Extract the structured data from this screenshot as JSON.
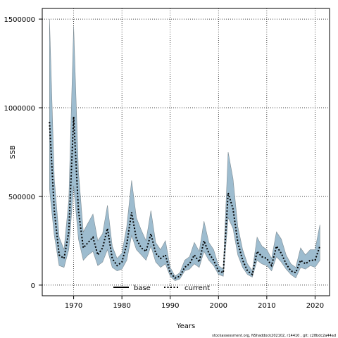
{
  "chart_data": {
    "type": "line",
    "xlabel": "Years",
    "ylabel": "SSB",
    "xlim": [
      1963.5,
      2023
    ],
    "ylim": [
      -60000,
      1560000
    ],
    "xticks": [
      1970,
      1980,
      1990,
      2000,
      2010,
      2020
    ],
    "yticks": [
      0,
      500000,
      1000000,
      1500000
    ],
    "grid": true,
    "legend_placement": "bottom-center",
    "band_color": "#9dbccf",
    "band_edge_color": "#7f8c93",
    "series": [
      {
        "name": "base",
        "style": "solid",
        "color": "#000000",
        "x": [],
        "values": []
      },
      {
        "name": "current",
        "style": "dotted",
        "color": "#000000",
        "x": [
          1965,
          1966,
          1967,
          1968,
          1969,
          1970,
          1971,
          1972,
          1973,
          1974,
          1975,
          1976,
          1977,
          1978,
          1979,
          1980,
          1981,
          1982,
          1983,
          1984,
          1985,
          1986,
          1987,
          1988,
          1989,
          1990,
          1991,
          1992,
          1993,
          1994,
          1995,
          1996,
          1997,
          1998,
          1999,
          2000,
          2001,
          2002,
          2003,
          2004,
          2005,
          2006,
          2007,
          2008,
          2009,
          2010,
          2011,
          2012,
          2013,
          2014,
          2015,
          2016,
          2017,
          2018,
          2019,
          2020,
          2021
        ],
        "values": [
          920000,
          420000,
          170000,
          150000,
          300000,
          950000,
          420000,
          210000,
          240000,
          270000,
          170000,
          210000,
          320000,
          150000,
          110000,
          130000,
          230000,
          410000,
          260000,
          210000,
          190000,
          290000,
          180000,
          150000,
          170000,
          70000,
          40000,
          50000,
          100000,
          120000,
          170000,
          130000,
          250000,
          180000,
          140000,
          80000,
          70000,
          520000,
          430000,
          240000,
          140000,
          80000,
          60000,
          190000,
          160000,
          150000,
          110000,
          220000,
          180000,
          120000,
          80000,
          70000,
          140000,
          120000,
          140000,
          140000,
          220000
        ],
        "lower": [
          540000,
          280000,
          110000,
          100000,
          200000,
          560000,
          260000,
          140000,
          170000,
          190000,
          110000,
          130000,
          200000,
          100000,
          80000,
          90000,
          140000,
          280000,
          200000,
          170000,
          140000,
          220000,
          130000,
          100000,
          120000,
          50000,
          25000,
          35000,
          80000,
          90000,
          120000,
          100000,
          190000,
          140000,
          110000,
          60000,
          50000,
          380000,
          320000,
          170000,
          100000,
          60000,
          45000,
          140000,
          120000,
          110000,
          80000,
          160000,
          130000,
          90000,
          60000,
          40000,
          100000,
          90000,
          110000,
          100000,
          140000
        ],
        "upper": [
          1500000,
          600000,
          270000,
          200000,
          480000,
          1460000,
          640000,
          300000,
          350000,
          400000,
          250000,
          290000,
          450000,
          220000,
          150000,
          180000,
          330000,
          590000,
          380000,
          310000,
          250000,
          420000,
          240000,
          200000,
          250000,
          100000,
          50000,
          70000,
          140000,
          160000,
          240000,
          190000,
          360000,
          240000,
          200000,
          110000,
          90000,
          750000,
          600000,
          330000,
          200000,
          120000,
          80000,
          270000,
          220000,
          200000,
          150000,
          300000,
          260000,
          170000,
          120000,
          100000,
          210000,
          170000,
          200000,
          200000,
          340000
        ]
      }
    ],
    "footer": "stockassessment.org, NShaddock202102, r14410 , git: c28bdc2a44ad"
  }
}
